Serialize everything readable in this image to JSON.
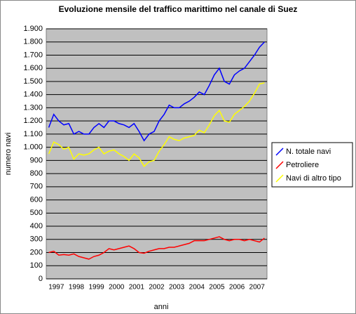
{
  "chart_data": {
    "type": "line",
    "title": "Evoluzione mensile del traffico marittimo nel canale di Suez",
    "x_label": "anni",
    "y_label": "numero navi",
    "categories": [
      null,
      "1997",
      null,
      null,
      null,
      "1998",
      null,
      null,
      null,
      "1999",
      null,
      null,
      null,
      "2000",
      null,
      null,
      null,
      "2001",
      null,
      null,
      null,
      "2002",
      null,
      null,
      null,
      "2003",
      null,
      null,
      null,
      "2004",
      null,
      null,
      null,
      "2005",
      null,
      null,
      null,
      "2006",
      null,
      null,
      null,
      "2007",
      null,
      null
    ],
    "ylim": [
      0,
      1900
    ],
    "yticks": [
      0,
      100,
      200,
      300,
      400,
      500,
      600,
      700,
      800,
      900,
      {
        "value": 1000,
        "label": "1.000"
      },
      {
        "value": 1100,
        "label": "1.100"
      },
      {
        "value": 1200,
        "label": "1.200"
      },
      {
        "value": 1300,
        "label": "1.300"
      },
      {
        "value": 1400,
        "label": "1.400"
      },
      {
        "value": 1500,
        "label": "1.500"
      },
      {
        "value": 1600,
        "label": "1.600"
      },
      {
        "value": 1700,
        "label": "1.700"
      },
      {
        "value": 1800,
        "label": "1.800"
      },
      {
        "value": 1900,
        "label": "1.900"
      }
    ],
    "grid": true,
    "legend": "right",
    "series": [
      {
        "name": "N. totale navi",
        "color": "#0000ff",
        "values": [
          1150,
          1250,
          1200,
          1170,
          1180,
          1100,
          1120,
          1100,
          1100,
          1150,
          1180,
          1150,
          1200,
          1200,
          1180,
          1170,
          1150,
          1180,
          1120,
          1050,
          1100,
          1120,
          1200,
          1250,
          1320,
          1300,
          1300,
          1330,
          1350,
          1380,
          1420,
          1400,
          1470,
          1550,
          1600,
          1500,
          1480,
          1550,
          1580,
          1600,
          1650,
          1700,
          1760,
          1800
        ]
      },
      {
        "name": "Petroliere",
        "color": "#ff0000",
        "values": [
          200,
          210,
          180,
          185,
          180,
          190,
          170,
          160,
          150,
          170,
          180,
          200,
          230,
          220,
          230,
          240,
          250,
          230,
          200,
          195,
          210,
          220,
          230,
          230,
          240,
          240,
          250,
          260,
          270,
          290,
          290,
          290,
          300,
          310,
          320,
          300,
          290,
          300,
          300,
          290,
          300,
          290,
          280,
          310
        ]
      },
      {
        "name": "Navi di altro tipo",
        "color": "#ffff00",
        "values": [
          950,
          1040,
          1020,
          985,
          1000,
          910,
          950,
          940,
          950,
          980,
          1000,
          950,
          970,
          980,
          950,
          930,
          900,
          950,
          920,
          855,
          890,
          900,
          970,
          1020,
          1080,
          1060,
          1050,
          1070,
          1080,
          1090,
          1130,
          1110,
          1170,
          1240,
          1280,
          1200,
          1190,
          1250,
          1280,
          1310,
          1350,
          1410,
          1480,
          1490
        ]
      }
    ]
  }
}
